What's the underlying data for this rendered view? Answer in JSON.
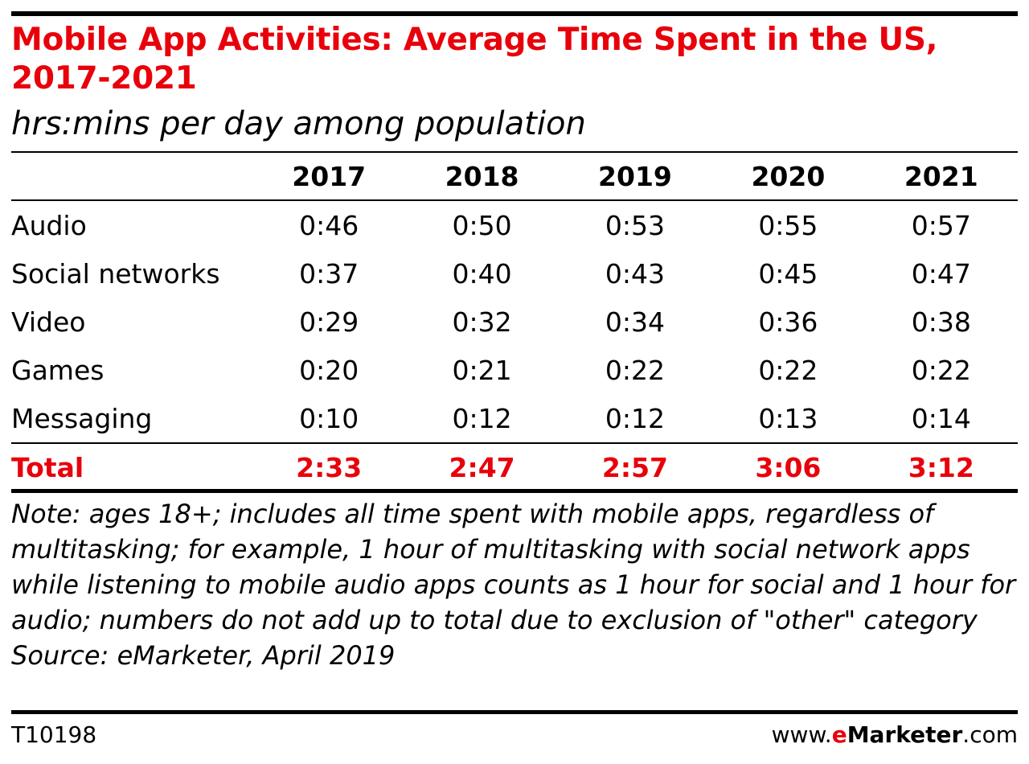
{
  "chart_data": {
    "type": "table",
    "title": "Mobile App Activities: Average Time Spent in the US, 2017-2021",
    "subtitle": "hrs:mins per day among population",
    "columns": [
      "2017",
      "2018",
      "2019",
      "2020",
      "2021"
    ],
    "rows": [
      {
        "label": "Audio",
        "values": [
          "0:46",
          "0:50",
          "0:53",
          "0:55",
          "0:57"
        ]
      },
      {
        "label": "Social networks",
        "values": [
          "0:37",
          "0:40",
          "0:43",
          "0:45",
          "0:47"
        ]
      },
      {
        "label": "Video",
        "values": [
          "0:29",
          "0:32",
          "0:34",
          "0:36",
          "0:38"
        ]
      },
      {
        "label": "Games",
        "values": [
          "0:20",
          "0:21",
          "0:22",
          "0:22",
          "0:22"
        ]
      },
      {
        "label": "Messaging",
        "values": [
          "0:10",
          "0:12",
          "0:12",
          "0:13",
          "0:14"
        ]
      }
    ],
    "total": {
      "label": "Total",
      "values": [
        "2:33",
        "2:47",
        "2:57",
        "3:06",
        "3:12"
      ]
    },
    "note": "Note: ages 18+; includes all time spent with mobile apps, regardless of multitasking; for example, 1 hour of multitasking with social network apps while listening to mobile audio apps counts as 1 hour for social and 1 hour for audio; numbers do not add up to total due to exclusion of \"other\" category",
    "source": "Source: eMarketer, April 2019"
  },
  "footer": {
    "code": "T10198",
    "brand_prefix": "www.",
    "brand_e": "e",
    "brand_name": "Marketer",
    "brand_suffix": ".com"
  },
  "colors": {
    "accent": "#e8000b",
    "text": "#000000"
  }
}
